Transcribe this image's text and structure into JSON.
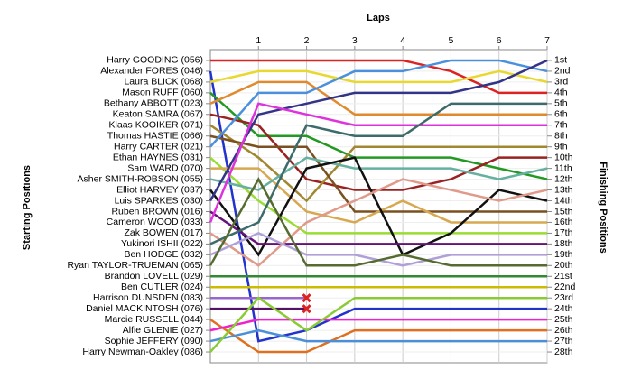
{
  "chart_data": {
    "type": "line",
    "title": "Laps",
    "y_label": "Starting Positions",
    "y2_label": "Finishing Positions",
    "x": [
      0,
      1,
      2,
      3,
      4,
      5,
      6,
      7
    ],
    "xlim": [
      0,
      7
    ],
    "xticks": [
      1,
      2,
      3,
      4,
      5,
      6,
      7
    ],
    "ylim": [
      29,
      0
    ],
    "grid": true,
    "retired_marker_color": "#dd2222",
    "y2lim": [
      29,
      0
    ],
    "y2ticks": [
      {
        "value": 1,
        "label": "1st"
      },
      {
        "value": 2,
        "label": "2nd"
      },
      {
        "value": 3,
        "label": "3rd"
      },
      {
        "value": 4,
        "label": "4th"
      },
      {
        "value": 5,
        "label": "5th"
      },
      {
        "value": 6,
        "label": "6th"
      },
      {
        "value": 7,
        "label": "7th"
      },
      {
        "value": 8,
        "label": "8th"
      },
      {
        "value": 9,
        "label": "9th"
      },
      {
        "value": 10,
        "label": "10th"
      },
      {
        "value": 11,
        "label": "11th"
      },
      {
        "value": 12,
        "label": "12th"
      },
      {
        "value": 13,
        "label": "13th"
      },
      {
        "value": 14,
        "label": "14th"
      },
      {
        "value": 15,
        "label": "15th"
      },
      {
        "value": 16,
        "label": "16th"
      },
      {
        "value": 17,
        "label": "17th"
      },
      {
        "value": 18,
        "label": "18th"
      },
      {
        "value": 19,
        "label": "19th"
      },
      {
        "value": 20,
        "label": "20th"
      },
      {
        "value": 21,
        "label": "21st"
      },
      {
        "value": 22,
        "label": "22nd"
      },
      {
        "value": 23,
        "label": "23rd"
      },
      {
        "value": 24,
        "label": "24th"
      },
      {
        "value": 25,
        "label": "25th"
      },
      {
        "value": 26,
        "label": "26th"
      },
      {
        "value": 27,
        "label": "27th"
      },
      {
        "value": 28,
        "label": "28th"
      }
    ],
    "series": [
      {
        "name": "Harry GOODING (056)",
        "color": "#dd2222",
        "values": [
          1,
          1,
          1,
          1,
          1,
          2,
          4,
          4
        ]
      },
      {
        "name": "Alexander FORES (046)",
        "color": "#2233cc",
        "values": [
          2,
          27,
          26,
          24,
          24,
          24,
          24,
          24
        ]
      },
      {
        "name": "Laura BLICK (068)",
        "color": "#e8d830",
        "values": [
          3,
          2,
          2,
          3,
          3,
          3,
          2,
          3
        ]
      },
      {
        "name": "Mason RUFF (060)",
        "color": "#229922",
        "values": [
          4,
          8,
          8,
          10,
          10,
          10,
          11,
          12
        ]
      },
      {
        "name": "Bethany ABBOTT (023)",
        "color": "#e08a30",
        "values": [
          5,
          3,
          3,
          6,
          6,
          6,
          6,
          6
        ]
      },
      {
        "name": "Keaton SAMRA (067)",
        "color": "#992222",
        "values": [
          6,
          7,
          12,
          13,
          13,
          12,
          10,
          10
        ]
      },
      {
        "name": "Klaas KOOIKER (071)",
        "color": "#a08830",
        "values": [
          7,
          10,
          14,
          9,
          9,
          9,
          9,
          9
        ]
      },
      {
        "name": "Thomas HASTIE (066)",
        "color": "#7a5020",
        "values": [
          8,
          9,
          9,
          15,
          15,
          15,
          15,
          15
        ]
      },
      {
        "name": "Harry CARTER (021)",
        "color": "#4a90dd",
        "values": [
          9,
          4,
          4,
          2,
          2,
          1,
          1,
          2
        ]
      },
      {
        "name": "Ethan HAYNES (031)",
        "color": "#99dd33",
        "values": [
          10,
          14,
          17,
          17,
          17,
          17,
          17,
          17
        ]
      },
      {
        "name": "Sam WARD (070)",
        "color": "#d8a850",
        "values": [
          11,
          11,
          15,
          16,
          14,
          16,
          16,
          16
        ]
      },
      {
        "name": "Asher SMITH-ROBSON (055)",
        "color": "#66b0a0",
        "values": [
          12,
          13,
          10,
          11,
          11,
          11,
          12,
          11
        ]
      },
      {
        "name": "Elliot HARVEY (037)",
        "color": "#111111",
        "values": [
          13,
          19,
          11,
          10,
          19,
          17,
          13,
          14
        ]
      },
      {
        "name": "Luis SPARKES (030)",
        "color": "#333388",
        "values": [
          14,
          6,
          5,
          4,
          4,
          4,
          3,
          1
        ]
      },
      {
        "name": "Ruben BROWN (016)",
        "color": "#661177",
        "values": [
          15,
          18,
          18,
          18,
          18,
          18,
          18,
          18
        ]
      },
      {
        "name": "Cameron WOOD (033)",
        "color": "#dd33dd",
        "values": [
          16,
          5,
          6,
          7,
          7,
          7,
          7,
          7
        ]
      },
      {
        "name": "Zak BOWEN (017)",
        "color": "#e09a8a",
        "values": [
          17,
          20,
          16,
          14,
          12,
          13,
          14,
          13
        ]
      },
      {
        "name": "Yukinori ISHII (022)",
        "color": "#3d6b6b",
        "values": [
          18,
          16,
          7,
          8,
          8,
          5,
          5,
          5
        ]
      },
      {
        "name": "Ben HODGE (032)",
        "color": "#b0a0d8",
        "values": [
          19,
          17,
          19,
          19,
          20,
          19,
          19,
          19
        ]
      },
      {
        "name": "Ryan TAYLOR-TRUEMAN (065)",
        "color": "#556b2f",
        "values": [
          20,
          12,
          20,
          20,
          19,
          20,
          20,
          20
        ]
      },
      {
        "name": "Brandon LOVELL (029)",
        "color": "#338833",
        "values": [
          21,
          21,
          21,
          21,
          21,
          21,
          21,
          21
        ]
      },
      {
        "name": "Ben CUTLER (024)",
        "color": "#ccbb00",
        "values": [
          22,
          22,
          22,
          22,
          22,
          22,
          22,
          22
        ]
      },
      {
        "name": "Harrison DUNSDEN (083)",
        "color": "#9966cc",
        "values": [
          23,
          23,
          23,
          null,
          null,
          null,
          null,
          null
        ]
      },
      {
        "name": "Daniel MACKINTOSH (076)",
        "color": "#551166",
        "values": [
          24,
          24,
          24,
          null,
          null,
          null,
          null,
          null
        ]
      },
      {
        "name": "Marcie RUSSELL (044)",
        "color": "#e07020",
        "values": [
          25,
          28,
          28,
          26,
          26,
          26,
          26,
          26
        ]
      },
      {
        "name": "Alfie GLENIE (027)",
        "color": "#ee22cc",
        "values": [
          26,
          25,
          25,
          25,
          25,
          25,
          25,
          25
        ]
      },
      {
        "name": "Sophie JEFFERY (090)",
        "color": "#4a8fd8",
        "values": [
          27,
          26,
          27,
          27,
          27,
          27,
          27,
          27
        ]
      },
      {
        "name": "Harry Newman-Oakley (086)",
        "color": "#88cc33",
        "values": [
          28,
          23,
          26,
          23,
          23,
          23,
          23,
          23
        ]
      }
    ]
  }
}
